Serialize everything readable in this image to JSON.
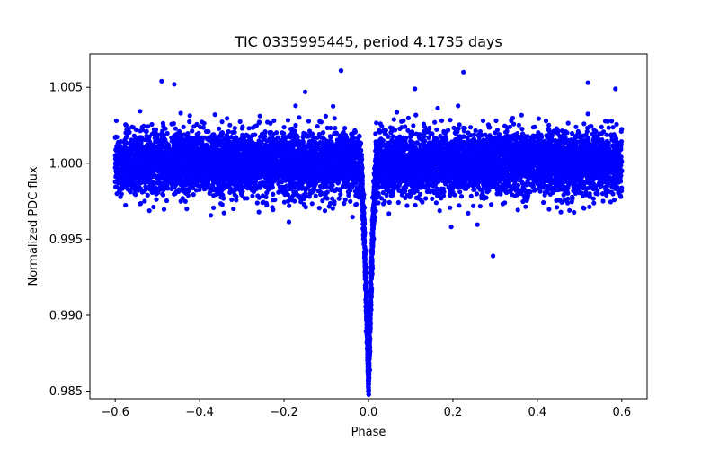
{
  "chart_data": {
    "type": "scatter",
    "title": "TIC 0335995445, period 4.1735 days",
    "xlabel": "Phase",
    "ylabel": "Normalized PDC flux",
    "xlim": [
      -0.66,
      0.66
    ],
    "ylim": [
      0.9845,
      1.0072
    ],
    "xticks": [
      -0.6,
      -0.4,
      -0.2,
      0.0,
      0.2,
      0.4,
      0.6
    ],
    "xtick_labels": [
      "−0.6",
      "−0.4",
      "−0.2",
      "0.0",
      "0.2",
      "0.4",
      "0.6"
    ],
    "yticks": [
      0.985,
      0.99,
      0.995,
      1.0,
      1.005
    ],
    "ytick_labels": [
      "0.985",
      "0.990",
      "0.995",
      "1.000",
      "1.005"
    ],
    "grid": false,
    "marker_color": "#0000ff",
    "series": [
      {
        "phase_range": [
          -0.6,
          0.6
        ],
        "baseline_flux": 1.0,
        "flux_scatter_band": [
          0.9975,
          1.003
        ],
        "transit": {
          "center_phase": 0.0,
          "min_flux": 0.9855,
          "half_width_phase": 0.02
        },
        "outliers": [
          {
            "x": -0.065,
            "y": 1.0061
          },
          {
            "x": 0.225,
            "y": 1.006
          },
          {
            "x": -0.49,
            "y": 1.0054
          },
          {
            "x": 0.52,
            "y": 1.0053
          },
          {
            "x": -0.46,
            "y": 1.0052
          },
          {
            "x": 0.295,
            "y": 0.9939
          },
          {
            "x": -0.32,
            "y": 0.997
          },
          {
            "x": 0.585,
            "y": 1.0049
          },
          {
            "x": -0.15,
            "y": 1.0047
          },
          {
            "x": 0.11,
            "y": 1.0049
          }
        ]
      }
    ]
  }
}
